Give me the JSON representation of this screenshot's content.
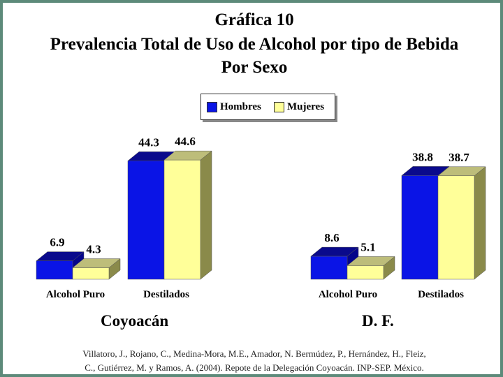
{
  "title": {
    "line1": "Gráfica 10",
    "line2": "Prevalencia Total de Uso de Alcohol por tipo de Bebida",
    "line3": "Por Sexo"
  },
  "legend": [
    {
      "label": "Hombres",
      "color": "#0a14e6"
    },
    {
      "label": "Mujeres",
      "color": "#ffff99"
    }
  ],
  "source": {
    "line1": "Villatoro, J., Rojano, C., Medina-Mora, M.E., Amador, N. Bermúdez, P., Hernández, H., Fleiz,",
    "line2": "C., Gutiérrez, M. y Ramos, A. (2004). Repote de la Delegación Coyoacán. INP-SEP. México."
  },
  "chart_data": [
    {
      "type": "bar",
      "title": "Coyoacán",
      "categories": [
        "Alcohol Puro",
        "Destilados"
      ],
      "series": [
        {
          "name": "Hombres",
          "values": [
            6.9,
            44.3
          ]
        },
        {
          "name": "Mujeres",
          "values": [
            4.3,
            44.6
          ]
        }
      ],
      "ylim": [
        0,
        50
      ],
      "grid": false,
      "legend": "top-center",
      "labels": [
        [
          "6.9",
          "4.3"
        ],
        [
          "44.3",
          "44.6"
        ]
      ]
    },
    {
      "type": "bar",
      "title": "D. F.",
      "categories": [
        "Alcohol Puro",
        "Destilados"
      ],
      "series": [
        {
          "name": "Hombres",
          "values": [
            8.6,
            38.8
          ]
        },
        {
          "name": "Mujeres",
          "values": [
            5.1,
            38.7
          ]
        }
      ],
      "ylim": [
        0,
        50
      ],
      "grid": false,
      "legend": "top-center",
      "labels": [
        [
          "8.6",
          "5.1"
        ],
        [
          "38.8",
          "38.7"
        ]
      ]
    }
  ]
}
